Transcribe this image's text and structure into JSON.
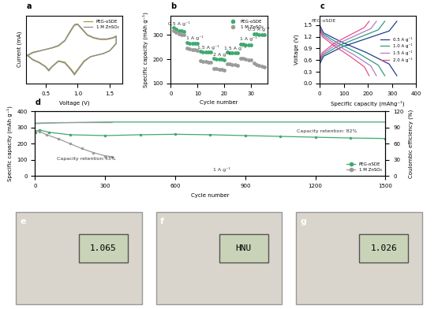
{
  "chart_data": [
    {
      "type": "line",
      "title": "a",
      "x_label": "Voltage (V)",
      "y_label": "Current (mA)",
      "xlim": [
        0.2,
        1.7
      ],
      "xticks": [
        0.5,
        1.0,
        1.5
      ],
      "ylim": [
        -1.1,
        1.3
      ],
      "tick_labels": "x",
      "legend": "upper right",
      "series": [
        {
          "name": "PEG-oSDE",
          "color": "#a89a3a",
          "line_style": "solid",
          "x": [
            0.22,
            0.3,
            0.4,
            0.5,
            0.6,
            0.7,
            0.8,
            0.88,
            0.95,
            1.0,
            1.05,
            1.15,
            1.25,
            1.35,
            1.45,
            1.55,
            1.6,
            1.6,
            1.5,
            1.4,
            1.3,
            1.2,
            1.1,
            1.0,
            0.95,
            0.9,
            0.8,
            0.7,
            0.6,
            0.55,
            0.5,
            0.4,
            0.3,
            0.22
          ],
          "values": [
            -0.1,
            0.0,
            0.05,
            0.1,
            0.15,
            0.22,
            0.4,
            0.7,
            0.95,
            0.98,
            0.85,
            0.6,
            0.5,
            0.45,
            0.45,
            0.5,
            0.55,
            0.3,
            0.05,
            -0.05,
            -0.1,
            -0.15,
            -0.3,
            -0.6,
            -0.75,
            -0.6,
            -0.35,
            -0.3,
            -0.5,
            -0.62,
            -0.5,
            -0.35,
            -0.25,
            -0.1
          ]
        },
        {
          "name": "1 M ZnSO₄",
          "color": "#8c8c8c",
          "line_style": "solid",
          "x": [
            0.22,
            0.3,
            0.4,
            0.5,
            0.6,
            0.7,
            0.8,
            0.88,
            0.95,
            1.0,
            1.05,
            1.15,
            1.25,
            1.35,
            1.45,
            1.55,
            1.6,
            1.6,
            1.5,
            1.4,
            1.3,
            1.2,
            1.1,
            1.0,
            0.95,
            0.9,
            0.8,
            0.7,
            0.6,
            0.55,
            0.5,
            0.4,
            0.3,
            0.22
          ],
          "values": [
            -0.12,
            -0.02,
            0.04,
            0.1,
            0.16,
            0.24,
            0.42,
            0.74,
            0.98,
            1.0,
            0.88,
            0.62,
            0.52,
            0.47,
            0.47,
            0.52,
            0.58,
            0.32,
            0.06,
            -0.04,
            -0.1,
            -0.16,
            -0.33,
            -0.64,
            -0.8,
            -0.64,
            -0.38,
            -0.32,
            -0.52,
            -0.66,
            -0.52,
            -0.37,
            -0.27,
            -0.12
          ]
        }
      ]
    },
    {
      "type": "scatter",
      "title": "b",
      "x_label": "Cycle number",
      "y_label": "Specific capacity (mAh g⁻¹)",
      "xlim": [
        0,
        36
      ],
      "xticks": [
        0,
        10,
        20,
        30
      ],
      "ylim": [
        100,
        380
      ],
      "yticks": [
        100,
        200,
        300
      ],
      "legend": "upper right",
      "x": [
        1,
        2,
        3,
        4,
        5,
        6,
        7,
        8,
        9,
        10,
        11,
        12,
        13,
        14,
        15,
        16,
        17,
        18,
        19,
        20,
        21,
        22,
        23,
        24,
        25,
        26,
        27,
        28,
        29,
        30,
        31,
        32,
        33,
        34,
        35
      ],
      "series": [
        {
          "name": "PEG-oSDE",
          "color": "#3daa6e",
          "marker": "o",
          "values": [
            330,
            322,
            318,
            316,
            315,
            268,
            266,
            265,
            265,
            264,
            232,
            230,
            229,
            229,
            228,
            202,
            200,
            199,
            199,
            198,
            228,
            227,
            226,
            226,
            225,
            262,
            261,
            260,
            260,
            259,
            305,
            303,
            302,
            301,
            300
          ]
        },
        {
          "name": "1 M ZnSO₄",
          "color": "#9a9a9a",
          "marker": "o",
          "values": [
            318,
            310,
            305,
            302,
            300,
            245,
            242,
            240,
            238,
            236,
            195,
            192,
            190,
            188,
            186,
            162,
            160,
            158,
            157,
            156,
            182,
            180,
            178,
            176,
            175,
            205,
            202,
            200,
            198,
            196,
            185,
            178,
            174,
            171,
            168
          ]
        }
      ],
      "annotations": [
        {
          "text": "0.5 A g⁻¹",
          "x": 3,
          "y": 345
        },
        {
          "text": "1 A g⁻¹",
          "x": 9,
          "y": 288
        },
        {
          "text": "1.5 A g⁻¹",
          "x": 14,
          "y": 250
        },
        {
          "text": "2 A g⁻¹",
          "x": 19,
          "y": 220
        },
        {
          "text": "1.5 A g⁻¹",
          "x": 24,
          "y": 247
        },
        {
          "text": "1 A g⁻¹",
          "x": 29,
          "y": 283
        },
        {
          "text": "0.5 A g⁻¹",
          "x": 33,
          "y": 325
        }
      ]
    },
    {
      "type": "line",
      "title": "c",
      "x_label": "Specific capacity (mAhg⁻¹)",
      "y_label": "Voltage (V)",
      "xlim": [
        0,
        400
      ],
      "xticks": [
        0,
        100,
        200,
        300,
        400
      ],
      "ylim": [
        0,
        1.75
      ],
      "yticks": [
        0.0,
        0.3,
        0.6,
        0.9,
        1.2,
        1.5
      ],
      "legend": "center right",
      "series": [
        {
          "name": "0.5 A g⁻¹",
          "color": "#1f3f8f",
          "line_style": "solid",
          "x": [
            0,
            16,
            96,
            192,
            288,
            320,
            null,
            0,
            16,
            96,
            192,
            288,
            320
          ],
          "values": [
            1.5,
            1.3,
            1.05,
            0.8,
            0.5,
            0.2,
            null,
            0.5,
            0.7,
            0.95,
            1.15,
            1.35,
            1.6
          ]
        },
        {
          "name": "1.0 A g⁻¹",
          "color": "#2e9a80",
          "line_style": "solid",
          "x": [
            0,
            13.5,
            81,
            162,
            243,
            270,
            null,
            0,
            13.5,
            81,
            162,
            243,
            270
          ],
          "values": [
            1.48,
            1.27,
            1.02,
            0.77,
            0.47,
            0.2,
            null,
            0.53,
            0.73,
            0.98,
            1.18,
            1.38,
            1.6
          ]
        },
        {
          "name": "1.5 A g⁻¹",
          "color": "#b07cc6",
          "line_style": "solid",
          "x": [
            0,
            12,
            70,
            141,
            212,
            235,
            null,
            0,
            12,
            70,
            141,
            212,
            235
          ],
          "values": [
            1.46,
            1.24,
            0.99,
            0.74,
            0.45,
            0.2,
            null,
            0.56,
            0.76,
            1.01,
            1.21,
            1.41,
            1.6
          ]
        },
        {
          "name": "2.0 A g⁻¹",
          "color": "#e8508a",
          "line_style": "solid",
          "x": [
            0,
            10,
            62,
            123,
            185,
            205,
            null,
            0,
            10,
            62,
            123,
            185,
            205
          ],
          "values": [
            1.44,
            1.21,
            0.96,
            0.71,
            0.43,
            0.2,
            null,
            0.59,
            0.79,
            1.04,
            1.24,
            1.44,
            1.6
          ]
        }
      ],
      "annotations": [
        {
          "text": "PEG-oSDE",
          "x": 15,
          "y": 1.62
        }
      ]
    },
    {
      "type": "line",
      "title": "d",
      "x_label": "Cycle number",
      "y_label": "Specific capacity (mAh g⁻¹)",
      "y2_label": "Coulombic efficiency (%)",
      "xlim": [
        0,
        1500
      ],
      "xticks": [
        0,
        300,
        600,
        900,
        1200,
        1500
      ],
      "ylim": [
        0,
        400
      ],
      "yticks": [
        0,
        100,
        200,
        300,
        400
      ],
      "y2lim": [
        0,
        120
      ],
      "y2ticks": [
        0,
        30,
        60,
        90,
        120
      ],
      "legend": "lower right",
      "series": [
        {
          "name": "PEG-oSDE",
          "color": "#3daa6e",
          "marker": "o",
          "line_style": "solid",
          "x": [
            1,
            20,
            60,
            150,
            300,
            450,
            600,
            750,
            900,
            1050,
            1200,
            1350,
            1500
          ],
          "values": [
            270,
            285,
            270,
            255,
            250,
            255,
            258,
            255,
            250,
            245,
            240,
            235,
            232
          ]
        },
        {
          "name": "1 M ZnSO₄",
          "color": "#9a9a9a",
          "marker": "o",
          "line_style": "solid",
          "x": [
            1,
            20,
            50,
            100,
            150,
            200,
            250,
            300,
            330
          ],
          "values": [
            280,
            275,
            255,
            230,
            200,
            170,
            145,
            125,
            120
          ]
        },
        {
          "axis": "y2",
          "color": "#3daa6e",
          "line_style": "solid",
          "x": [
            1,
            300,
            600,
            900,
            1200,
            1500
          ],
          "values": [
            98,
            100,
            100,
            100,
            100,
            100
          ]
        },
        {
          "axis": "y2",
          "color": "#9a9a9a",
          "line_style": "solid",
          "x": [
            1,
            100,
            200,
            330
          ],
          "values": [
            97,
            99,
            99,
            99
          ]
        }
      ],
      "annotations": [
        {
          "text": "Capacity retention: 82%",
          "x": 1250,
          "y": 275
        },
        {
          "text": "Capacity retention:43%",
          "x": 220,
          "y": 105
        },
        {
          "text": "1 A g⁻¹",
          "x": 800,
          "y": 40
        }
      ]
    }
  ],
  "photos": [
    {
      "label": "e",
      "text": "1.065"
    },
    {
      "label": "f",
      "text": "HNU"
    },
    {
      "label": "g",
      "text": "1.026"
    }
  ]
}
